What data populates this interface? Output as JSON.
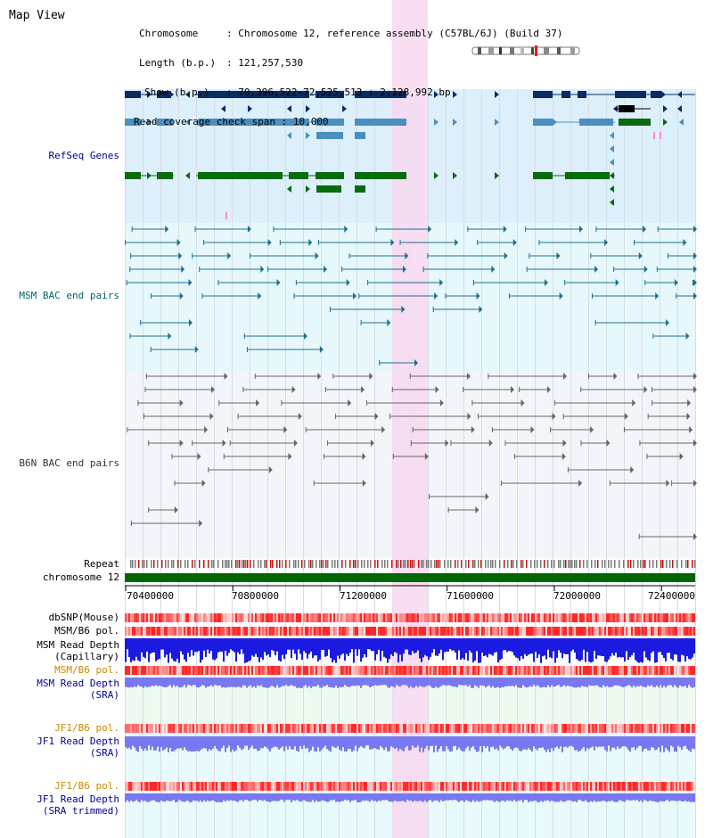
{
  "title": "Map View",
  "info": {
    "chromosome_key": "Chromosome",
    "chromosome_val": "Chromosome 12, reference assembly (C57BL/6J) (Build 37)",
    "length_key": "Length (b.p.)",
    "length_val": "121,257,530",
    "show_key": "Show (b.p.)",
    "show_val": "70,396,522-72,525,513 : 2,128,992 bp",
    "span_key": "Read coverage check span",
    "span_val": "10,000"
  },
  "labels": {
    "refseq": "RefSeq Genes",
    "msm_bac": "MSM BAC end pairs",
    "b6n_bac": "B6N BAC end pairs",
    "repeat": "Repeat",
    "chromosome": "chromosome 12",
    "dbsnp": "dbSNP(Mouse)",
    "msm_b6_pol": "MSM/B6 pol.",
    "msm_depth_cap_1": "MSM Read Depth",
    "msm_depth_cap_2": "(Capillary)",
    "msm_b6_pol_sra": "MSM/B6 pol.",
    "msm_depth_sra_1": "MSM Read Depth",
    "msm_depth_sra_2": "(SRA)",
    "jf1_b6_pol": "JF1/B6 pol.",
    "jf1_depth_1": "JF1 Read Depth",
    "jf1_depth_2": "(SRA)",
    "jf1_b6_pol_trim": "JF1/B6 pol.",
    "jf1_depth_trim_1": "JF1 Read Depth",
    "jf1_depth_trim_2": "(SRA trimmed)"
  },
  "axis": {
    "ticks": [
      "70400000",
      "70800000",
      "71200000",
      "71600000",
      "72000000",
      "72400000"
    ],
    "tick_values": [
      70400000,
      70800000,
      71200000,
      71600000,
      72000000,
      72400000
    ]
  },
  "colors": {
    "refseq_label": "#000099",
    "msm_label": "#006666",
    "b6n_label": "#333333",
    "pol_orange": "#cc8800",
    "depth_label": "#000099",
    "refseq_bg": "#dceffa",
    "msm_bg": "#e6f8fb",
    "b6n_bg": "#f2f5fa",
    "highlight": "#f8d8f0",
    "chromosome_bar": "#006600",
    "gene_dark": "#0b2b63",
    "gene_mid": "#4a8fc0",
    "gene_green": "#0a6a10",
    "msm_line": "#1d6f90",
    "b6n_line": "#666666",
    "depth_dark_blue": "#1a1ae0",
    "depth_light_blue": "#7878f0",
    "snp_red": "#ff6060"
  }
}
